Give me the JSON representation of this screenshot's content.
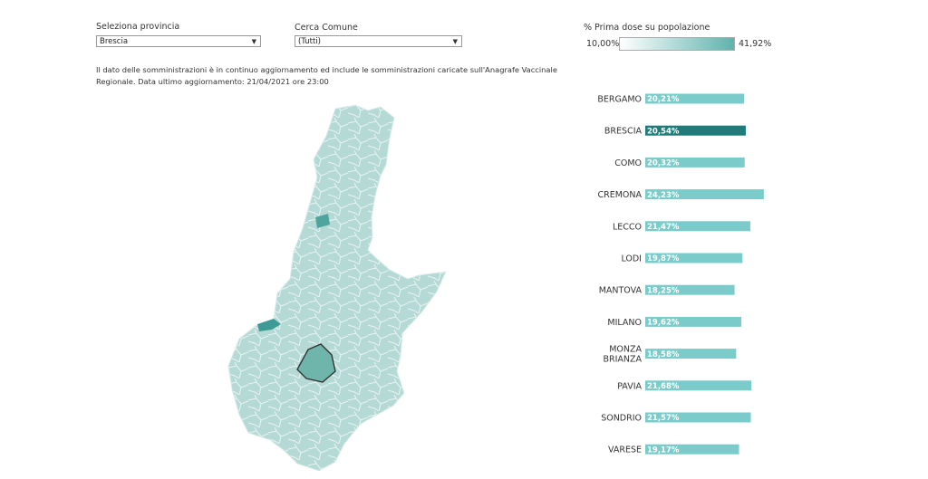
{
  "filters": {
    "province_label": "Seleziona provincia",
    "province_value": "Brescia",
    "comune_label": "Cerca Comune",
    "comune_value": "(Tutti)"
  },
  "legend": {
    "title": "% Prima dose su popolazione",
    "min_label": "10,00%",
    "max_label": "41,92%",
    "color_low": "#ffffff",
    "color_high": "#5fb3ad"
  },
  "note": "Il dato delle somministrazioni è in continuo aggiornamento ed include le somministrazioni caricate sull'Anagrafe Vaccinale Regionale. Data ultimo aggiornamento: 21/04/2021 ore 23:00",
  "colors": {
    "bar": "#7ccbcb",
    "bar_selected": "#1f7c7b",
    "map_fill": "#b7dcd8",
    "map_stroke": "#e6f2f1",
    "highlight": "#6fb5ac"
  },
  "chart_data": {
    "type": "bar",
    "orientation": "horizontal",
    "selected": "BRESCIA",
    "categories": [
      "BERGAMO",
      "BRESCIA",
      "COMO",
      "CREMONA",
      "LECCO",
      "LODI",
      "MANTOVA",
      "MILANO",
      "MONZA BRIANZA",
      "PAVIA",
      "SONDRIO",
      "VARESE"
    ],
    "category_lines": [
      [
        "BERGAMO"
      ],
      [
        "BRESCIA"
      ],
      [
        "COMO"
      ],
      [
        "CREMONA"
      ],
      [
        "LECCO"
      ],
      [
        "LODI"
      ],
      [
        "MANTOVA"
      ],
      [
        "MILANO"
      ],
      [
        "MONZA",
        "BRIANZA"
      ],
      [
        "PAVIA"
      ],
      [
        "SONDRIO"
      ],
      [
        "VARESE"
      ]
    ],
    "values": [
      20.21,
      20.54,
      20.32,
      24.23,
      21.47,
      19.87,
      18.25,
      19.62,
      18.58,
      21.68,
      21.57,
      19.17
    ],
    "labels": [
      "20,21%",
      "20,54%",
      "20,32%",
      "24,23%",
      "21,47%",
      "19,87%",
      "18,25%",
      "19,62%",
      "18,58%",
      "21,68%",
      "21,57%",
      "19,17%"
    ]
  }
}
